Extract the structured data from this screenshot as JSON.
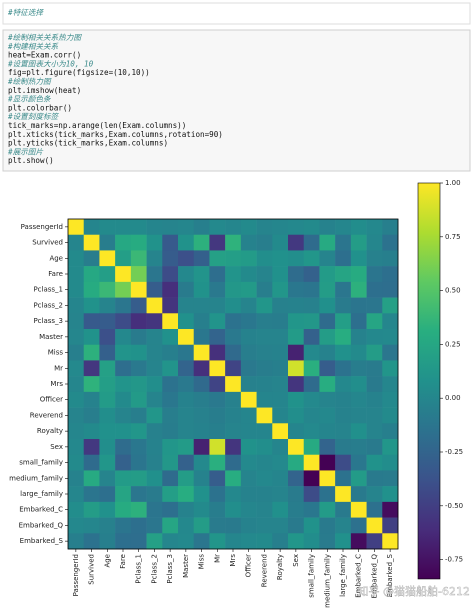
{
  "markdown_cell": {
    "text": "#特征选择"
  },
  "code_cell": {
    "lines": [
      "#绘制相关关系热力图",
      "#构建相关关系",
      "heat=Exam.corr()",
      "#设置图表大小为10, 10",
      "fig=plt.figure(figsize=(10,10))",
      "#绘制热力图",
      "plt.imshow(heat)",
      "#显示颜色条",
      "plt.colorbar()",
      "#设置刻度标签",
      "tick_marks=np.arange(len(Exam.columns))",
      "plt.xticks(tick_marks,Exam.columns,rotation=90)",
      "plt.yticks(tick_marks,Exam.columns)",
      "#展示图片",
      "plt.show()"
    ]
  },
  "watermark": "知乎 @猫猫船舶-6212",
  "chart_data": {
    "type": "heatmap",
    "colormap": "viridis",
    "categories": [
      "PassengerId",
      "Survived",
      "Age",
      "Fare",
      "Pclass_1",
      "Pclass_2",
      "Pclass_3",
      "Master",
      "Miss",
      "Mr",
      "Mrs",
      "Officer",
      "Reverend",
      "Royalty",
      "Sex",
      "small_family",
      "medium_family",
      "large_family",
      "Embarked_C",
      "Embarked_Q",
      "Embarked_S"
    ],
    "clim": [
      -0.84,
      1
    ],
    "colorbar_ticks": [
      {
        "value": 1,
        "label": "1.00"
      },
      {
        "value": 0.75,
        "label": "0.75"
      },
      {
        "value": 0.5,
        "label": "0.50"
      },
      {
        "value": 0.25,
        "label": "0.25"
      },
      {
        "value": 0,
        "label": "0.00"
      },
      {
        "value": -0.25,
        "label": "-0.25"
      },
      {
        "value": -0.5,
        "label": "-0.50"
      },
      {
        "value": -0.75,
        "label": "-0.75"
      }
    ],
    "values": [
      [
        1,
        -0.01,
        0.03,
        0.03,
        0.03,
        -0.01,
        -0.02,
        0,
        -0.05,
        0.02,
        0,
        0.03,
        -0.02,
        0,
        0.01,
        0.03,
        -0.03,
        0,
        0.05,
        0.01,
        -0.05
      ],
      [
        -0.01,
        1,
        -0.07,
        0.26,
        0.29,
        0.09,
        -0.32,
        0.09,
        0.33,
        -0.55,
        0.34,
        -0.03,
        -0.06,
        0.03,
        -0.54,
        -0.2,
        0.28,
        -0.13,
        0.17,
        0,
        -0.15
      ],
      [
        0.03,
        -0.07,
        1,
        0.18,
        0.39,
        -0.02,
        -0.31,
        -0.39,
        -0.28,
        0.2,
        0.18,
        0.16,
        0.06,
        0.08,
        0.06,
        0.12,
        -0.02,
        -0.17,
        0.08,
        -0.04,
        -0.05
      ],
      [
        0.03,
        0.26,
        0.18,
        1,
        0.6,
        -0.12,
        -0.42,
        0.01,
        0.1,
        -0.18,
        0.1,
        0.03,
        -0.02,
        0.08,
        -0.19,
        -0.27,
        0.16,
        0.23,
        0.29,
        -0.13,
        -0.17
      ],
      [
        0.03,
        0.29,
        0.39,
        0.6,
        1,
        -0.3,
        -0.6,
        -0.08,
        0.09,
        -0.1,
        0.13,
        0.15,
        -0.06,
        0.12,
        -0.11,
        -0.13,
        0.17,
        -0.12,
        0.33,
        -0.17,
        -0.18
      ],
      [
        -0.01,
        0.09,
        -0.02,
        -0.12,
        -0.3,
        1,
        -0.56,
        -0.02,
        -0.02,
        -0.02,
        0.06,
        -0.02,
        0.12,
        -0.04,
        -0.03,
        -0.04,
        0.07,
        -0.08,
        -0.13,
        -0.12,
        0.2
      ],
      [
        -0.02,
        -0.32,
        -0.31,
        -0.42,
        -0.6,
        -0.56,
        1,
        0.08,
        -0.05,
        0.1,
        -0.15,
        -0.11,
        -0.06,
        -0.07,
        0.12,
        0.13,
        -0.2,
        0.18,
        -0.17,
        0.24,
        0
      ],
      [
        0,
        0.09,
        -0.39,
        0.01,
        -0.08,
        -0.02,
        0.08,
        1,
        -0.11,
        -0.25,
        -0.1,
        -0.03,
        -0.02,
        -0.02,
        0.16,
        -0.27,
        0.17,
        0.3,
        -0.03,
        0.01,
        0.02
      ],
      [
        -0.05,
        0.33,
        -0.28,
        0.1,
        0.09,
        -0.02,
        -0.05,
        -0.11,
        1,
        -0.59,
        -0.21,
        -0.06,
        -0.04,
        -0.03,
        -0.67,
        0.02,
        -0.03,
        0.08,
        0.03,
        0.17,
        -0.12
      ],
      [
        0.02,
        -0.55,
        0.2,
        -0.18,
        -0.1,
        -0.02,
        0.1,
        -0.25,
        -0.59,
        1,
        -0.47,
        -0.1,
        -0.07,
        -0.05,
        0.87,
        0.32,
        -0.3,
        -0.15,
        -0.07,
        -0.08,
        0.11
      ],
      [
        0,
        0.34,
        0.18,
        0.1,
        0.13,
        0.06,
        -0.15,
        -0.1,
        -0.21,
        -0.47,
        1,
        -0.04,
        -0.03,
        -0.02,
        -0.56,
        -0.2,
        0.3,
        0.01,
        0.06,
        -0.09,
        0
      ],
      [
        0.03,
        -0.03,
        0.16,
        0.03,
        0.15,
        -0.02,
        -0.11,
        -0.03,
        -0.06,
        -0.1,
        -0.04,
        1,
        -0.01,
        -0.01,
        0.09,
        0.02,
        -0.02,
        -0.03,
        0,
        -0.03,
        0.02
      ],
      [
        -0.02,
        -0.06,
        0.06,
        -0.02,
        -0.06,
        0.12,
        -0.06,
        -0.02,
        -0.04,
        -0.07,
        -0.03,
        -0.01,
        1,
        -0.01,
        0.06,
        0,
        0.01,
        -0.03,
        -0.02,
        -0.02,
        0.03
      ],
      [
        0,
        0.03,
        0.08,
        0.08,
        0.12,
        -0.04,
        -0.07,
        -0.02,
        -0.03,
        -0.05,
        -0.02,
        -0.01,
        -0.01,
        1,
        -0.01,
        0.02,
        -0.01,
        -0.02,
        0.07,
        -0.02,
        -0.05
      ],
      [
        0.01,
        -0.54,
        0.06,
        -0.19,
        -0.11,
        -0.03,
        0.12,
        0.16,
        -0.67,
        0.87,
        -0.56,
        0.09,
        0.06,
        -0.01,
        1,
        0.28,
        -0.25,
        -0.08,
        -0.07,
        -0.09,
        0.12
      ],
      [
        0.03,
        -0.2,
        0.12,
        -0.27,
        -0.13,
        -0.04,
        0.13,
        -0.27,
        0.02,
        0.32,
        -0.2,
        0.02,
        0,
        0.02,
        0.28,
        1,
        -0.84,
        -0.42,
        -0.11,
        0.09,
        0.05
      ],
      [
        -0.03,
        0.28,
        -0.02,
        0.16,
        0.17,
        0.07,
        -0.2,
        0.17,
        -0.03,
        -0.3,
        0.3,
        -0.02,
        0.01,
        -0.01,
        -0.25,
        -0.84,
        1,
        -0.15,
        0.16,
        -0.09,
        -0.08
      ],
      [
        0,
        -0.13,
        -0.17,
        0.23,
        -0.12,
        -0.08,
        0.18,
        0.3,
        0.08,
        -0.15,
        0.01,
        -0.03,
        -0.03,
        -0.02,
        -0.08,
        -0.42,
        -0.15,
        1,
        -0.09,
        -0.02,
        0.08
      ],
      [
        0.05,
        0.17,
        0.08,
        0.29,
        0.33,
        -0.13,
        -0.17,
        -0.03,
        0.03,
        -0.07,
        0.06,
        0,
        -0.02,
        0.07,
        -0.07,
        -0.11,
        0.16,
        -0.09,
        1,
        -0.16,
        -0.78
      ],
      [
        0.01,
        0,
        -0.04,
        -0.13,
        -0.17,
        -0.12,
        0.24,
        0.01,
        0.17,
        -0.08,
        -0.09,
        -0.03,
        -0.02,
        -0.02,
        -0.09,
        0.09,
        -0.09,
        -0.02,
        -0.16,
        1,
        -0.49
      ],
      [
        -0.05,
        -0.15,
        -0.05,
        -0.17,
        -0.18,
        0.2,
        0,
        0.02,
        -0.12,
        0.11,
        0,
        0.02,
        0.03,
        -0.05,
        0.12,
        0.05,
        -0.08,
        0.08,
        -0.78,
        -0.49,
        1
      ]
    ]
  }
}
